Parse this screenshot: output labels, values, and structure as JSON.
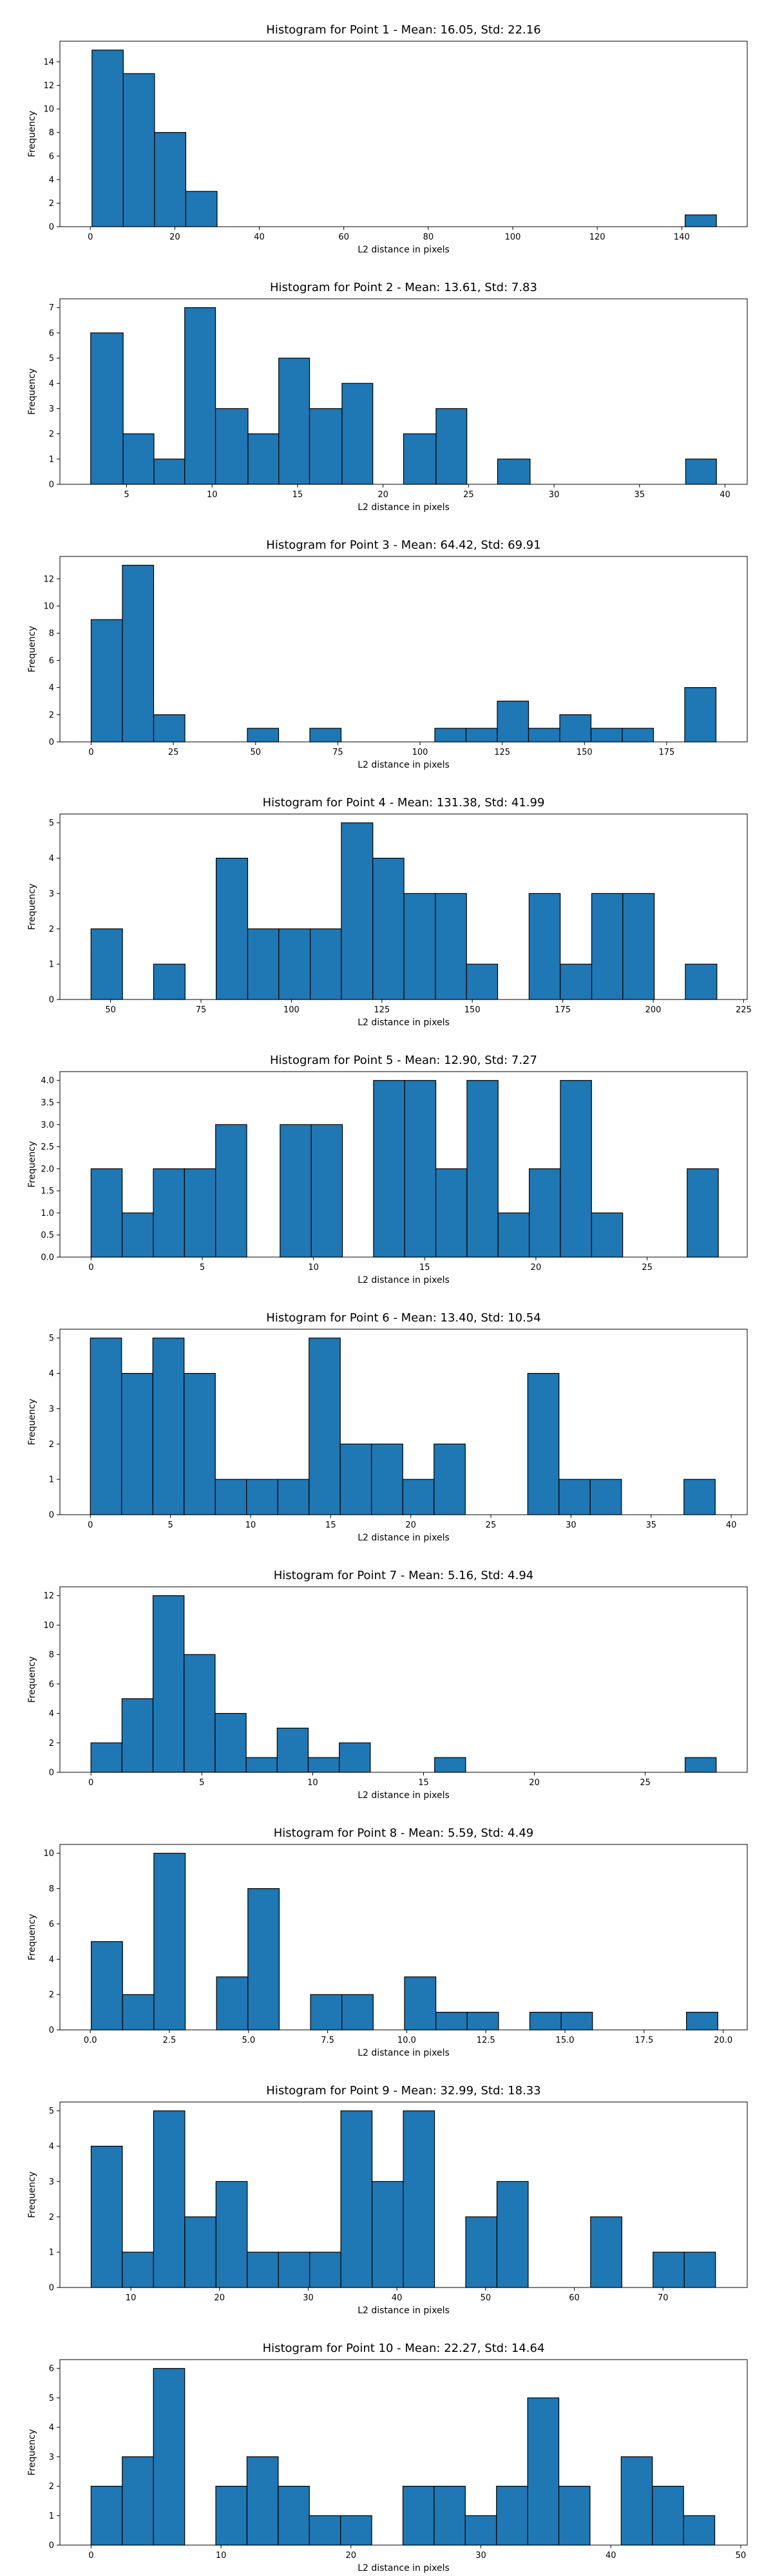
{
  "chart_data": [
    {
      "type": "bar",
      "title": "Histogram for Point 1 - Mean: 16.05, Std: 22.16",
      "xlabel": "L2 distance in pixels",
      "ylabel": "Frequency",
      "xlim": [
        -7.2,
        155.5
      ],
      "ylim": [
        0,
        15.75
      ],
      "xticks": [
        0,
        20,
        40,
        60,
        80,
        100,
        120,
        140
      ],
      "yticks": [
        0,
        2,
        4,
        6,
        8,
        10,
        12,
        14
      ],
      "bins": [
        {
          "x0": 0.4,
          "x1": 7.8,
          "count": 15
        },
        {
          "x0": 7.8,
          "x1": 15.2,
          "count": 13
        },
        {
          "x0": 15.2,
          "x1": 22.6,
          "count": 8
        },
        {
          "x0": 22.6,
          "x1": 30.0,
          "count": 3
        },
        {
          "x0": 140.8,
          "x1": 148.2,
          "count": 1
        }
      ]
    },
    {
      "type": "bar",
      "title": "Histogram for Point 2 - Mean: 13.61, Std: 7.83",
      "xlabel": "L2 distance in pixels",
      "ylabel": "Frequency",
      "xlim": [
        1.1,
        41.3
      ],
      "ylim": [
        0,
        7.35
      ],
      "xticks": [
        5,
        10,
        15,
        20,
        25,
        30,
        35,
        40
      ],
      "yticks": [
        0,
        1,
        2,
        3,
        4,
        5,
        6,
        7
      ],
      "bins": [
        {
          "x0": 2.9,
          "x1": 4.8,
          "count": 6
        },
        {
          "x0": 4.8,
          "x1": 6.6,
          "count": 2
        },
        {
          "x0": 6.6,
          "x1": 8.4,
          "count": 1
        },
        {
          "x0": 8.4,
          "x1": 10.2,
          "count": 7
        },
        {
          "x0": 10.2,
          "x1": 12.1,
          "count": 3
        },
        {
          "x0": 12.1,
          "x1": 13.9,
          "count": 2
        },
        {
          "x0": 13.9,
          "x1": 15.7,
          "count": 5
        },
        {
          "x0": 15.7,
          "x1": 17.6,
          "count": 3
        },
        {
          "x0": 17.6,
          "x1": 19.4,
          "count": 4
        },
        {
          "x0": 21.2,
          "x1": 23.1,
          "count": 2
        },
        {
          "x0": 23.1,
          "x1": 24.9,
          "count": 3
        },
        {
          "x0": 26.7,
          "x1": 28.6,
          "count": 1
        },
        {
          "x0": 37.7,
          "x1": 39.5,
          "count": 1
        }
      ]
    },
    {
      "type": "bar",
      "title": "Histogram for Point 3 - Mean: 64.42, Std: 69.91",
      "xlabel": "L2 distance in pixels",
      "ylabel": "Frequency",
      "xlim": [
        -9.5,
        199.5
      ],
      "ylim": [
        0,
        13.65
      ],
      "xticks": [
        0,
        25,
        50,
        75,
        100,
        125,
        150,
        175
      ],
      "yticks": [
        0,
        2,
        4,
        6,
        8,
        10,
        12
      ],
      "bins": [
        {
          "x0": 0.0,
          "x1": 9.5,
          "count": 9
        },
        {
          "x0": 9.5,
          "x1": 19.0,
          "count": 13
        },
        {
          "x0": 19.0,
          "x1": 28.5,
          "count": 2
        },
        {
          "x0": 47.5,
          "x1": 57.0,
          "count": 1
        },
        {
          "x0": 66.5,
          "x1": 76.0,
          "count": 1
        },
        {
          "x0": 104.5,
          "x1": 114.0,
          "count": 1
        },
        {
          "x0": 114.0,
          "x1": 123.5,
          "count": 1
        },
        {
          "x0": 123.5,
          "x1": 133.0,
          "count": 3
        },
        {
          "x0": 133.0,
          "x1": 142.5,
          "count": 1
        },
        {
          "x0": 142.5,
          "x1": 152.0,
          "count": 2
        },
        {
          "x0": 152.0,
          "x1": 161.5,
          "count": 1
        },
        {
          "x0": 161.5,
          "x1": 171.0,
          "count": 1
        },
        {
          "x0": 180.5,
          "x1": 190.0,
          "count": 4
        }
      ]
    },
    {
      "type": "bar",
      "title": "Histogram for Point 4 - Mean: 131.38, Std: 41.99",
      "xlabel": "L2 distance in pixels",
      "ylabel": "Frequency",
      "xlim": [
        36.0,
        226.0
      ],
      "ylim": [
        0,
        5.25
      ],
      "xticks": [
        50,
        75,
        100,
        125,
        150,
        175,
        200,
        225
      ],
      "yticks": [
        0,
        1,
        2,
        3,
        4,
        5
      ],
      "bins": [
        {
          "x0": 44.6,
          "x1": 53.3,
          "count": 2
        },
        {
          "x0": 61.9,
          "x1": 70.6,
          "count": 1
        },
        {
          "x0": 79.2,
          "x1": 87.9,
          "count": 4
        },
        {
          "x0": 87.9,
          "x1": 96.5,
          "count": 2
        },
        {
          "x0": 96.5,
          "x1": 105.2,
          "count": 2
        },
        {
          "x0": 105.2,
          "x1": 113.8,
          "count": 2
        },
        {
          "x0": 113.8,
          "x1": 122.5,
          "count": 5
        },
        {
          "x0": 122.5,
          "x1": 131.1,
          "count": 4
        },
        {
          "x0": 131.1,
          "x1": 139.8,
          "count": 3
        },
        {
          "x0": 139.8,
          "x1": 148.4,
          "count": 3
        },
        {
          "x0": 148.4,
          "x1": 157.0,
          "count": 1
        },
        {
          "x0": 165.7,
          "x1": 174.3,
          "count": 3
        },
        {
          "x0": 174.3,
          "x1": 183.0,
          "count": 1
        },
        {
          "x0": 183.0,
          "x1": 191.6,
          "count": 3
        },
        {
          "x0": 191.6,
          "x1": 200.3,
          "count": 3
        },
        {
          "x0": 208.9,
          "x1": 217.6,
          "count": 1
        }
      ]
    },
    {
      "type": "bar",
      "title": "Histogram for Point 5 - Mean: 12.90, Std: 7.27",
      "xlabel": "L2 distance in pixels",
      "ylabel": "Frequency",
      "xlim": [
        -1.4,
        29.5
      ],
      "ylim": [
        0,
        4.2
      ],
      "xticks": [
        0,
        5,
        10,
        15,
        20,
        25
      ],
      "yticks": [
        0,
        0.5,
        1.0,
        1.5,
        2.0,
        2.5,
        3.0,
        3.5,
        4.0
      ],
      "ytick_labels": [
        "0.0",
        "0.5",
        "1.0",
        "1.5",
        "2.0",
        "2.5",
        "3.0",
        "3.5",
        "4.0"
      ],
      "bins": [
        {
          "x0": 0.0,
          "x1": 1.4,
          "count": 2
        },
        {
          "x0": 1.4,
          "x1": 2.8,
          "count": 1
        },
        {
          "x0": 2.8,
          "x1": 4.2,
          "count": 2
        },
        {
          "x0": 4.2,
          "x1": 5.6,
          "count": 2
        },
        {
          "x0": 5.6,
          "x1": 7.0,
          "count": 3
        },
        {
          "x0": 8.5,
          "x1": 9.9,
          "count": 3
        },
        {
          "x0": 9.9,
          "x1": 11.3,
          "count": 3
        },
        {
          "x0": 12.7,
          "x1": 14.1,
          "count": 4
        },
        {
          "x0": 14.1,
          "x1": 15.5,
          "count": 4
        },
        {
          "x0": 15.5,
          "x1": 16.9,
          "count": 2
        },
        {
          "x0": 16.9,
          "x1": 18.3,
          "count": 4
        },
        {
          "x0": 18.3,
          "x1": 19.7,
          "count": 1
        },
        {
          "x0": 19.7,
          "x1": 21.1,
          "count": 2
        },
        {
          "x0": 21.1,
          "x1": 22.5,
          "count": 4
        },
        {
          "x0": 22.5,
          "x1": 23.9,
          "count": 1
        },
        {
          "x0": 26.8,
          "x1": 28.2,
          "count": 2
        }
      ]
    },
    {
      "type": "bar",
      "title": "Histogram for Point 6 - Mean: 13.40, Std: 10.54",
      "xlabel": "L2 distance in pixels",
      "ylabel": "Frequency",
      "xlim": [
        -1.9,
        41.0
      ],
      "ylim": [
        0,
        5.25
      ],
      "xticks": [
        0,
        5,
        10,
        15,
        20,
        25,
        30,
        35,
        40
      ],
      "yticks": [
        0,
        1,
        2,
        3,
        4,
        5
      ],
      "bins": [
        {
          "x0": 0.0,
          "x1": 1.95,
          "count": 5
        },
        {
          "x0": 1.95,
          "x1": 3.9,
          "count": 4
        },
        {
          "x0": 3.9,
          "x1": 5.85,
          "count": 5
        },
        {
          "x0": 5.85,
          "x1": 7.8,
          "count": 4
        },
        {
          "x0": 7.8,
          "x1": 9.75,
          "count": 1
        },
        {
          "x0": 9.75,
          "x1": 11.7,
          "count": 1
        },
        {
          "x0": 11.7,
          "x1": 13.65,
          "count": 1
        },
        {
          "x0": 13.65,
          "x1": 15.6,
          "count": 5
        },
        {
          "x0": 15.6,
          "x1": 17.55,
          "count": 2
        },
        {
          "x0": 17.55,
          "x1": 19.5,
          "count": 2
        },
        {
          "x0": 19.5,
          "x1": 21.45,
          "count": 1
        },
        {
          "x0": 21.45,
          "x1": 23.4,
          "count": 2
        },
        {
          "x0": 27.3,
          "x1": 29.25,
          "count": 4
        },
        {
          "x0": 29.25,
          "x1": 31.2,
          "count": 1
        },
        {
          "x0": 31.2,
          "x1": 33.15,
          "count": 1
        },
        {
          "x0": 37.05,
          "x1": 39.0,
          "count": 1
        }
      ]
    },
    {
      "type": "bar",
      "title": "Histogram for Point 7 - Mean: 5.16, Std: 4.94",
      "xlabel": "L2 distance in pixels",
      "ylabel": "Frequency",
      "xlim": [
        -1.4,
        29.6
      ],
      "ylim": [
        0,
        12.6
      ],
      "xticks": [
        0,
        5,
        10,
        15,
        20,
        25
      ],
      "yticks": [
        0,
        2,
        4,
        6,
        8,
        10,
        12
      ],
      "bins": [
        {
          "x0": 0.0,
          "x1": 1.4,
          "count": 2
        },
        {
          "x0": 1.4,
          "x1": 2.8,
          "count": 5
        },
        {
          "x0": 2.8,
          "x1": 4.2,
          "count": 12
        },
        {
          "x0": 4.2,
          "x1": 5.6,
          "count": 8
        },
        {
          "x0": 5.6,
          "x1": 7.0,
          "count": 4
        },
        {
          "x0": 7.0,
          "x1": 8.4,
          "count": 1
        },
        {
          "x0": 8.4,
          "x1": 9.8,
          "count": 3
        },
        {
          "x0": 9.8,
          "x1": 11.2,
          "count": 1
        },
        {
          "x0": 11.2,
          "x1": 12.6,
          "count": 2
        },
        {
          "x0": 15.5,
          "x1": 16.9,
          "count": 1
        },
        {
          "x0": 26.8,
          "x1": 28.2,
          "count": 1
        }
      ]
    },
    {
      "type": "bar",
      "title": "Histogram for Point 8 - Mean: 5.59, Std: 4.49",
      "xlabel": "L2 distance in pixels",
      "ylabel": "Frequency",
      "xlim": [
        -0.96,
        20.76
      ],
      "ylim": [
        0,
        10.5
      ],
      "xticks": [
        0,
        2.5,
        5,
        7.5,
        10,
        12.5,
        15,
        17.5,
        20
      ],
      "xtick_labels": [
        "0.0",
        "2.5",
        "5.0",
        "7.5",
        "10.0",
        "12.5",
        "15.0",
        "17.5",
        "20.0"
      ],
      "yticks": [
        0,
        2,
        4,
        6,
        8,
        10
      ],
      "bins": [
        {
          "x0": 0.03,
          "x1": 1.02,
          "count": 5
        },
        {
          "x0": 1.02,
          "x1": 2.01,
          "count": 2
        },
        {
          "x0": 2.01,
          "x1": 3.0,
          "count": 10
        },
        {
          "x0": 3.99,
          "x1": 4.98,
          "count": 3
        },
        {
          "x0": 4.98,
          "x1": 5.97,
          "count": 8
        },
        {
          "x0": 6.96,
          "x1": 7.95,
          "count": 2
        },
        {
          "x0": 7.95,
          "x1": 8.94,
          "count": 2
        },
        {
          "x0": 9.93,
          "x1": 10.92,
          "count": 3
        },
        {
          "x0": 10.92,
          "x1": 11.91,
          "count": 1
        },
        {
          "x0": 11.91,
          "x1": 12.9,
          "count": 1
        },
        {
          "x0": 13.89,
          "x1": 14.88,
          "count": 1
        },
        {
          "x0": 14.88,
          "x1": 15.87,
          "count": 1
        },
        {
          "x0": 18.84,
          "x1": 19.83,
          "count": 1
        }
      ]
    },
    {
      "type": "bar",
      "title": "Histogram for Point 9 - Mean: 32.99, Std: 18.33",
      "xlabel": "L2 distance in pixels",
      "ylabel": "Frequency",
      "xlim": [
        2.0,
        79.5
      ],
      "ylim": [
        0,
        5.25
      ],
      "xticks": [
        10,
        20,
        30,
        40,
        50,
        60,
        70
      ],
      "yticks": [
        0,
        1,
        2,
        3,
        4,
        5
      ],
      "bins": [
        {
          "x0": 5.52,
          "x1": 9.04,
          "count": 4
        },
        {
          "x0": 9.04,
          "x1": 12.56,
          "count": 1
        },
        {
          "x0": 12.56,
          "x1": 16.08,
          "count": 5
        },
        {
          "x0": 16.08,
          "x1": 19.6,
          "count": 2
        },
        {
          "x0": 19.6,
          "x1": 23.12,
          "count": 3
        },
        {
          "x0": 23.12,
          "x1": 26.64,
          "count": 1
        },
        {
          "x0": 26.64,
          "x1": 30.16,
          "count": 1
        },
        {
          "x0": 30.16,
          "x1": 33.68,
          "count": 1
        },
        {
          "x0": 33.68,
          "x1": 37.2,
          "count": 5
        },
        {
          "x0": 37.2,
          "x1": 40.72,
          "count": 3
        },
        {
          "x0": 40.72,
          "x1": 44.24,
          "count": 5
        },
        {
          "x0": 47.76,
          "x1": 51.28,
          "count": 2
        },
        {
          "x0": 51.28,
          "x1": 54.8,
          "count": 3
        },
        {
          "x0": 61.84,
          "x1": 65.36,
          "count": 2
        },
        {
          "x0": 68.88,
          "x1": 72.4,
          "count": 1
        },
        {
          "x0": 72.4,
          "x1": 75.92,
          "count": 1
        }
      ]
    },
    {
      "type": "bar",
      "title": "Histogram for Point 10 - Mean: 22.27, Std: 14.64",
      "xlabel": "L2 distance in pixels",
      "ylabel": "Frequency",
      "xlim": [
        -2.4,
        50.5
      ],
      "ylim": [
        0,
        6.3
      ],
      "xticks": [
        0,
        10,
        20,
        30,
        40,
        50
      ],
      "yticks": [
        0,
        1,
        2,
        3,
        4,
        5,
        6
      ],
      "bins": [
        {
          "x0": 0.0,
          "x1": 2.4,
          "count": 2
        },
        {
          "x0": 2.4,
          "x1": 4.8,
          "count": 3
        },
        {
          "x0": 4.8,
          "x1": 7.2,
          "count": 6
        },
        {
          "x0": 9.6,
          "x1": 12.0,
          "count": 2
        },
        {
          "x0": 12.0,
          "x1": 14.4,
          "count": 3
        },
        {
          "x0": 14.4,
          "x1": 16.8,
          "count": 2
        },
        {
          "x0": 16.8,
          "x1": 19.2,
          "count": 1
        },
        {
          "x0": 19.2,
          "x1": 21.6,
          "count": 1
        },
        {
          "x0": 24.0,
          "x1": 26.4,
          "count": 2
        },
        {
          "x0": 26.4,
          "x1": 28.8,
          "count": 2
        },
        {
          "x0": 28.8,
          "x1": 31.2,
          "count": 1
        },
        {
          "x0": 31.2,
          "x1": 33.6,
          "count": 2
        },
        {
          "x0": 33.6,
          "x1": 36.0,
          "count": 5
        },
        {
          "x0": 36.0,
          "x1": 38.4,
          "count": 2
        },
        {
          "x0": 40.8,
          "x1": 43.2,
          "count": 3
        },
        {
          "x0": 43.2,
          "x1": 45.6,
          "count": 2
        },
        {
          "x0": 45.6,
          "x1": 48.0,
          "count": 1
        }
      ]
    }
  ],
  "colors": {
    "bar_fill": "#1f77b4",
    "bar_edge": "#000000",
    "axis": "#000000",
    "background": "#ffffff"
  }
}
